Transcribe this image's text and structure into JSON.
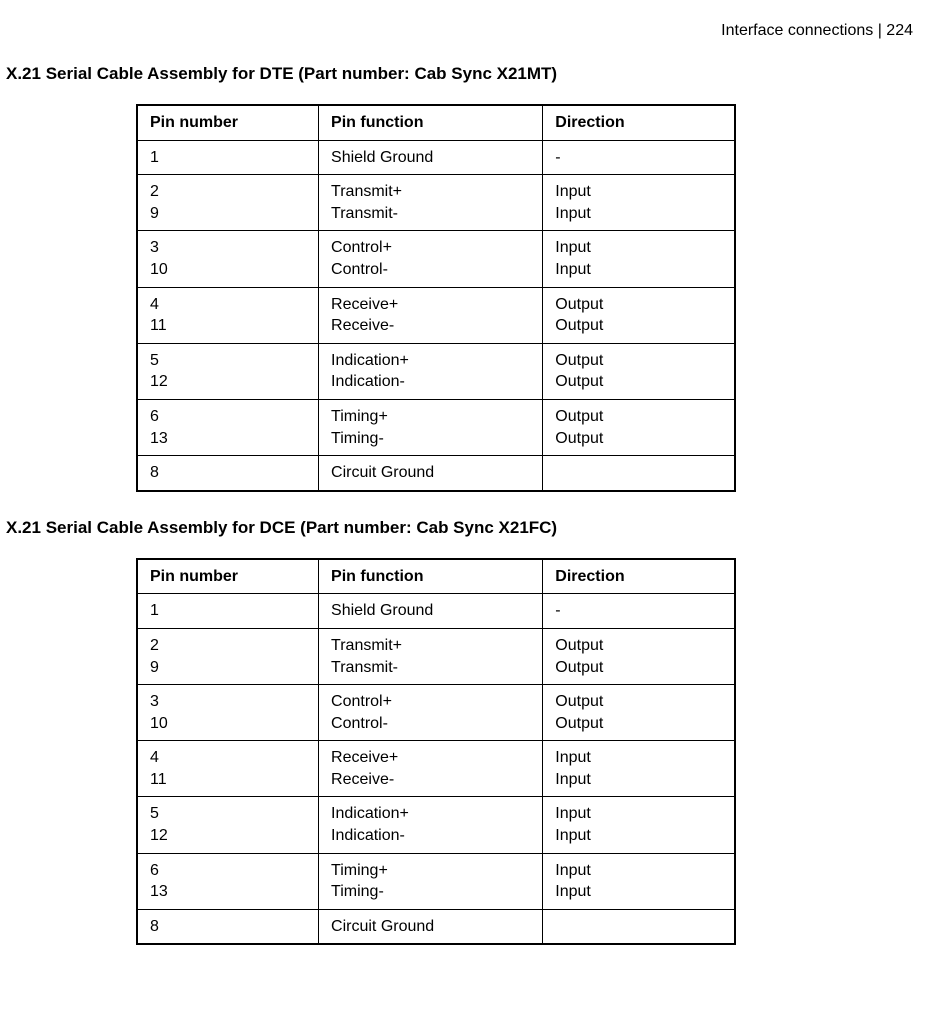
{
  "header_left": "Interface connections",
  "header_sep": "  |  ",
  "header_page": "224",
  "sections": [
    {
      "title": "X.21 Serial Cable Assembly for DTE (Part number: Cab Sync X21MT)",
      "columns": [
        "Pin number",
        "Pin function",
        "Direction"
      ],
      "rows": [
        {
          "pin": [
            "1"
          ],
          "func": [
            "Shield Ground"
          ],
          "dir": [
            "-"
          ]
        },
        {
          "pin": [
            "2",
            "9"
          ],
          "func": [
            "Transmit+",
            "Transmit-"
          ],
          "dir": [
            "Input",
            "Input"
          ]
        },
        {
          "pin": [
            "3",
            "10"
          ],
          "func": [
            "Control+",
            "Control-"
          ],
          "dir": [
            "Input",
            "Input"
          ]
        },
        {
          "pin": [
            "4",
            "11"
          ],
          "func": [
            "Receive+",
            "Receive-"
          ],
          "dir": [
            "Output",
            "Output"
          ]
        },
        {
          "pin": [
            "5",
            "12"
          ],
          "func": [
            "Indication+",
            "Indication-"
          ],
          "dir": [
            "Output",
            "Output"
          ]
        },
        {
          "pin": [
            "6",
            "13"
          ],
          "func": [
            "Timing+",
            "Timing-"
          ],
          "dir": [
            "Output",
            "Output"
          ]
        },
        {
          "pin": [
            "8"
          ],
          "func": [
            "Circuit Ground"
          ],
          "dir": [
            ""
          ]
        }
      ]
    },
    {
      "title": "X.21 Serial Cable Assembly for DCE (Part number: Cab Sync X21FC)",
      "columns": [
        "Pin number",
        "Pin function",
        "Direction"
      ],
      "rows": [
        {
          "pin": [
            "1"
          ],
          "func": [
            "Shield Ground"
          ],
          "dir": [
            "-"
          ]
        },
        {
          "pin": [
            "2",
            "9"
          ],
          "func": [
            "Transmit+",
            "Transmit-"
          ],
          "dir": [
            "Output",
            "Output"
          ]
        },
        {
          "pin": [
            "3",
            "10"
          ],
          "func": [
            "Control+",
            "Control-"
          ],
          "dir": [
            "Output",
            "Output"
          ]
        },
        {
          "pin": [
            "4",
            "11"
          ],
          "func": [
            "Receive+",
            "Receive-"
          ],
          "dir": [
            "Input",
            "Input"
          ]
        },
        {
          "pin": [
            "5",
            "12"
          ],
          "func": [
            "Indication+",
            "Indication-"
          ],
          "dir": [
            "Input",
            "Input"
          ]
        },
        {
          "pin": [
            "6",
            "13"
          ],
          "func": [
            "Timing+",
            "Timing-"
          ],
          "dir": [
            "Input",
            "Input"
          ]
        },
        {
          "pin": [
            "8"
          ],
          "func": [
            "Circuit Ground"
          ],
          "dir": [
            ""
          ]
        }
      ]
    }
  ]
}
